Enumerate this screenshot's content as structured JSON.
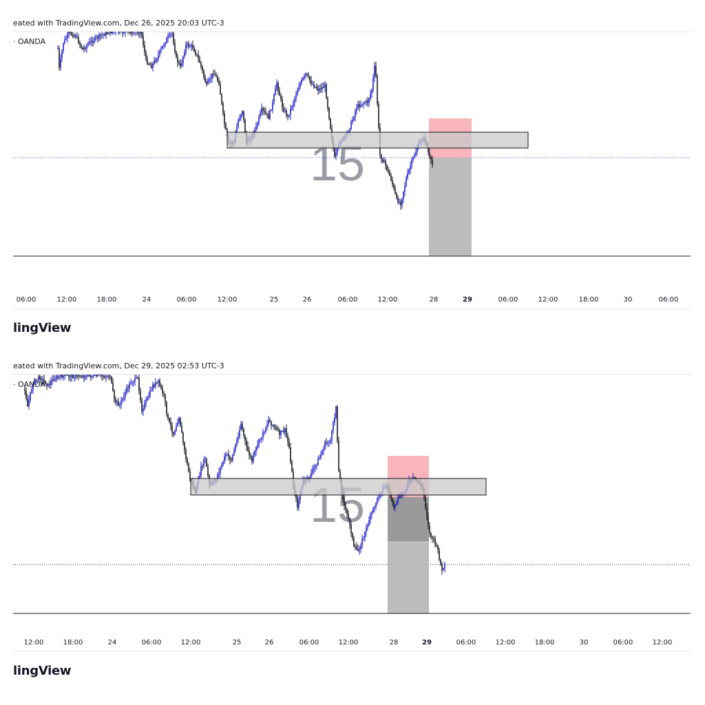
{
  "charts": [
    {
      "caption": "eated with TradingView.com, Dec 26, 2025 20:03 UTC-3",
      "symbol": "· OANDA",
      "watermark": "15",
      "brand": "lingView",
      "x_ticks": [
        {
          "label": "06:00",
          "bold": false
        },
        {
          "label": "12:00",
          "bold": false
        },
        {
          "label": "18:00",
          "bold": false
        },
        {
          "label": "24",
          "bold": false
        },
        {
          "label": "06:00",
          "bold": false
        },
        {
          "label": "12:00",
          "bold": false
        },
        {
          "label": "25",
          "bold": false
        },
        {
          "label": "26",
          "bold": false
        },
        {
          "label": "06:00",
          "bold": false
        },
        {
          "label": "12:00",
          "bold": false
        },
        {
          "label": "28",
          "bold": false
        },
        {
          "label": "29",
          "bold": true
        },
        {
          "label": "06:00",
          "bold": false
        },
        {
          "label": "12:00",
          "bold": false
        },
        {
          "label": "18:00",
          "bold": false
        },
        {
          "label": "30",
          "bold": false
        },
        {
          "label": "06:00",
          "bold": false
        }
      ]
    },
    {
      "caption": "eated with TradingView.com, Dec 29, 2025 02:53 UTC-3",
      "symbol": "· OANDA",
      "watermark": "15",
      "brand": "lingView",
      "x_ticks": [
        {
          "label": "12:00",
          "bold": false
        },
        {
          "label": "18:00",
          "bold": false
        },
        {
          "label": "24",
          "bold": false
        },
        {
          "label": "06:00",
          "bold": false
        },
        {
          "label": "12:00",
          "bold": false
        },
        {
          "label": "25",
          "bold": false
        },
        {
          "label": "26",
          "bold": false
        },
        {
          "label": "06:00",
          "bold": false
        },
        {
          "label": "12:00",
          "bold": false
        },
        {
          "label": "28",
          "bold": false
        },
        {
          "label": "29",
          "bold": true
        },
        {
          "label": "06:00",
          "bold": false
        },
        {
          "label": "12:00",
          "bold": false
        },
        {
          "label": "18:00",
          "bold": false
        },
        {
          "label": "30",
          "bold": false
        },
        {
          "label": "06:00",
          "bold": false
        },
        {
          "label": "12:00",
          "bold": false
        }
      ]
    }
  ],
  "chart_data": [
    {
      "type": "candlestick",
      "title": "",
      "candle_colors": {
        "up": "#1f1fcc",
        "down": "#131722"
      },
      "position_tool": {
        "stop_color": "#f7a8b0",
        "target_color": "#b2b2b2"
      },
      "zone_color": "#d6d6d6",
      "price_line_color": "#3b3bd9",
      "grid": false
    },
    {
      "type": "candlestick",
      "title": "",
      "candle_colors": {
        "up": "#1f1fcc",
        "down": "#131722"
      },
      "position_tool": {
        "stop_color": "#f7a8b0",
        "target_color": "#b2b2b2"
      },
      "zone_color": "#d6d6d6",
      "price_line_color": "#3b3bd9",
      "grid": false
    }
  ]
}
